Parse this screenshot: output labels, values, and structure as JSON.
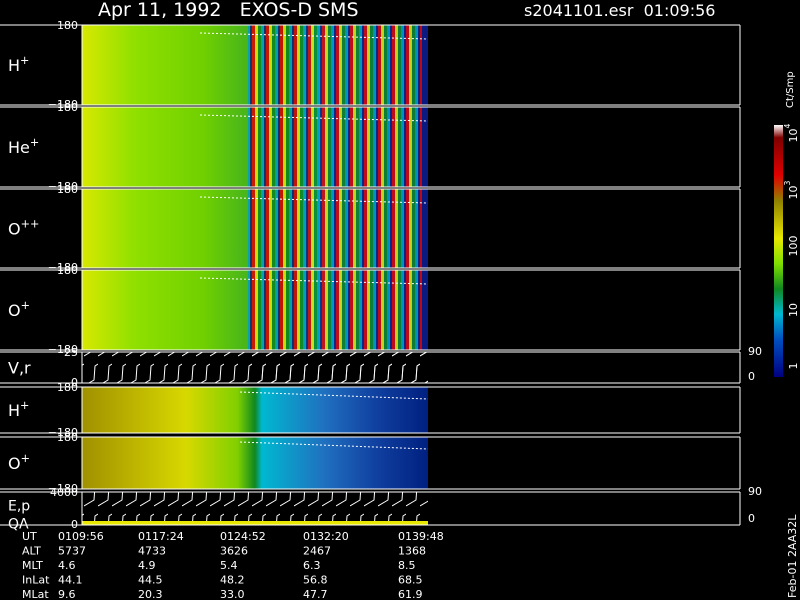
{
  "header": {
    "title": "Apr 11, 1992   EXOS-D SMS",
    "file": "s2041101.esr  01:09:56"
  },
  "panels": [
    {
      "label": {
        "base": "H",
        "sup": "+"
      },
      "ticks": [
        "180",
        "−180"
      ]
    },
    {
      "label": {
        "base": "He",
        "sup": "+"
      },
      "ticks": [
        "180",
        "−180"
      ]
    },
    {
      "label": {
        "base": "O",
        "sup": "++"
      },
      "ticks": [
        "180",
        "−180"
      ]
    },
    {
      "label": {
        "base": "O",
        "sup": "+"
      },
      "ticks": [
        "180",
        "−180"
      ]
    },
    {
      "label": {
        "base": "V,r"
      },
      "ticks": [
        "25",
        "0"
      ],
      "right_ticks": [
        "90",
        "0"
      ]
    },
    {
      "label": {
        "base": "H",
        "sup": "+"
      },
      "ticks": [
        "180",
        "−180"
      ]
    },
    {
      "label": {
        "base": "O",
        "sup": "+"
      },
      "ticks": [
        "180",
        "−180"
      ]
    },
    {
      "label": {
        "base": "E,p",
        "line2": "QA"
      },
      "ticks": [
        "4000",
        "0"
      ],
      "right_ticks": [
        "90",
        "0"
      ]
    }
  ],
  "colorbar": {
    "unit": "Ct/Smp",
    "labels": [
      {
        "base": "10",
        "sup": "4"
      },
      {
        "base": "10",
        "sup": "3"
      },
      {
        "base": "100"
      },
      {
        "base": "10"
      },
      {
        "base": "1"
      }
    ]
  },
  "footer": {
    "code": "Feb-01 2AA32L"
  },
  "table": {
    "rows": [
      [
        "UT",
        "0109:56",
        "0117:24",
        "0124:52",
        "0132:20",
        "0139:48"
      ],
      [
        "ALT",
        "5737",
        "4733",
        "3626",
        "2467",
        "1368"
      ],
      [
        "MLT",
        "4.6",
        "4.9",
        "5.4",
        "6.3",
        "8.5"
      ],
      [
        "InLat",
        "44.1",
        "44.5",
        "48.2",
        "56.8",
        "68.5"
      ],
      [
        "MLat",
        "9.6",
        "20.3",
        "33.0",
        "47.7",
        "61.9"
      ]
    ]
  }
}
